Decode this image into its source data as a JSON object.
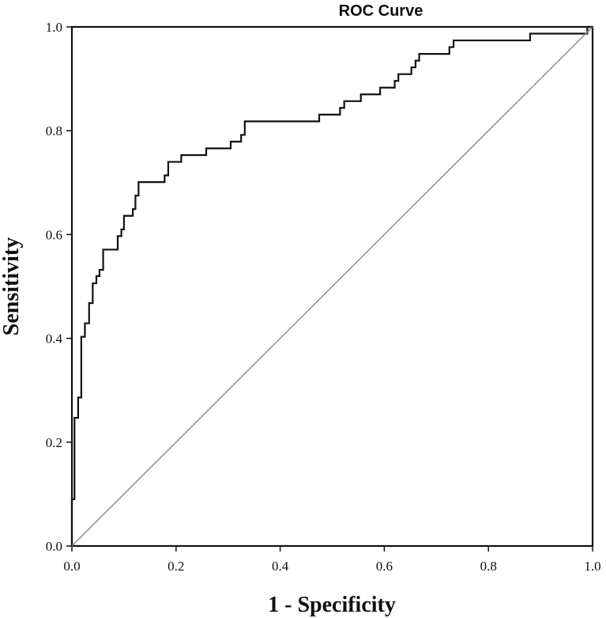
{
  "chart_data": {
    "type": "line",
    "title": "ROC Curve",
    "xlabel": "1 - Specificity",
    "ylabel": "Sensitivity",
    "xlim": [
      0.0,
      1.0
    ],
    "ylim": [
      0.0,
      1.0
    ],
    "x_ticks": [
      "0.0",
      "0.2",
      "0.4",
      "0.6",
      "0.8",
      "1.0"
    ],
    "y_ticks": [
      "0.0",
      "0.2",
      "0.4",
      "0.6",
      "0.8",
      "1.0"
    ],
    "grid": false,
    "legend": "none",
    "series": [
      {
        "color": "#111111",
        "points": [
          [
            0.0,
            0.0
          ],
          [
            0.0,
            0.09
          ],
          [
            0.005,
            0.09
          ],
          [
            0.005,
            0.247
          ],
          [
            0.012,
            0.247
          ],
          [
            0.012,
            0.286
          ],
          [
            0.018,
            0.286
          ],
          [
            0.018,
            0.403
          ],
          [
            0.025,
            0.403
          ],
          [
            0.025,
            0.429
          ],
          [
            0.033,
            0.429
          ],
          [
            0.033,
            0.468
          ],
          [
            0.04,
            0.468
          ],
          [
            0.04,
            0.506
          ],
          [
            0.047,
            0.506
          ],
          [
            0.047,
            0.52
          ],
          [
            0.053,
            0.52
          ],
          [
            0.053,
            0.532
          ],
          [
            0.06,
            0.532
          ],
          [
            0.06,
            0.571
          ],
          [
            0.088,
            0.571
          ],
          [
            0.088,
            0.597
          ],
          [
            0.095,
            0.597
          ],
          [
            0.095,
            0.61
          ],
          [
            0.1,
            0.61
          ],
          [
            0.1,
            0.636
          ],
          [
            0.117,
            0.636
          ],
          [
            0.117,
            0.649
          ],
          [
            0.122,
            0.649
          ],
          [
            0.122,
            0.675
          ],
          [
            0.128,
            0.675
          ],
          [
            0.128,
            0.701
          ],
          [
            0.178,
            0.701
          ],
          [
            0.178,
            0.714
          ],
          [
            0.185,
            0.714
          ],
          [
            0.185,
            0.74
          ],
          [
            0.21,
            0.74
          ],
          [
            0.21,
            0.753
          ],
          [
            0.258,
            0.753
          ],
          [
            0.258,
            0.766
          ],
          [
            0.305,
            0.766
          ],
          [
            0.305,
            0.779
          ],
          [
            0.325,
            0.779
          ],
          [
            0.325,
            0.792
          ],
          [
            0.332,
            0.792
          ],
          [
            0.332,
            0.818
          ],
          [
            0.475,
            0.818
          ],
          [
            0.475,
            0.831
          ],
          [
            0.515,
            0.831
          ],
          [
            0.515,
            0.844
          ],
          [
            0.523,
            0.844
          ],
          [
            0.523,
            0.857
          ],
          [
            0.555,
            0.857
          ],
          [
            0.555,
            0.87
          ],
          [
            0.592,
            0.87
          ],
          [
            0.592,
            0.883
          ],
          [
            0.62,
            0.883
          ],
          [
            0.62,
            0.896
          ],
          [
            0.627,
            0.896
          ],
          [
            0.627,
            0.909
          ],
          [
            0.652,
            0.909
          ],
          [
            0.652,
            0.922
          ],
          [
            0.66,
            0.922
          ],
          [
            0.66,
            0.935
          ],
          [
            0.667,
            0.935
          ],
          [
            0.667,
            0.948
          ],
          [
            0.725,
            0.948
          ],
          [
            0.725,
            0.961
          ],
          [
            0.733,
            0.961
          ],
          [
            0.733,
            0.974
          ],
          [
            0.88,
            0.974
          ],
          [
            0.88,
            0.987
          ],
          [
            0.99,
            0.987
          ],
          [
            0.99,
            1.0
          ],
          [
            1.0,
            1.0
          ]
        ]
      },
      {
        "color": "#888888",
        "points": [
          [
            0.0,
            0.0
          ],
          [
            1.0,
            1.0
          ]
        ]
      }
    ]
  }
}
